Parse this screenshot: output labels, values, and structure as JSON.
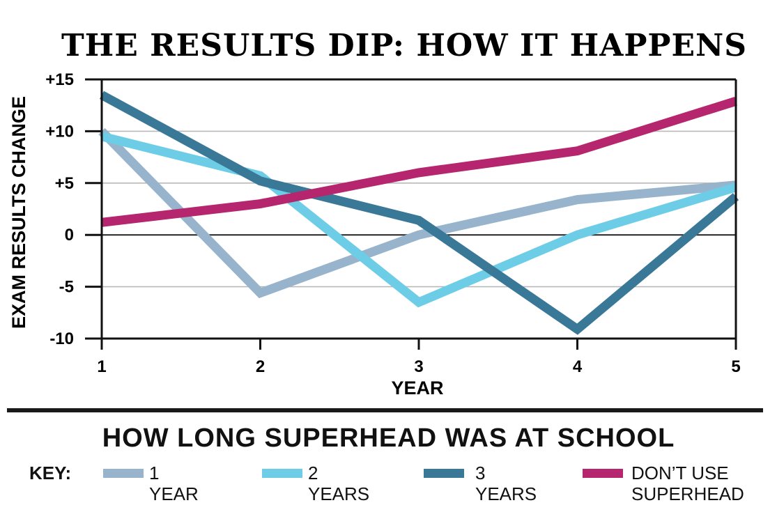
{
  "chart_data": {
    "type": "line",
    "title": "THE RESULTS DIP: HOW IT HAPPENS",
    "xlabel": "YEAR",
    "ylabel": "EXAM RESULTS CHANGE",
    "x": [
      1,
      2,
      3,
      4,
      5
    ],
    "x_tick_labels": [
      "1",
      "2",
      "3",
      "4",
      "5"
    ],
    "y_ticks": [
      15,
      10,
      5,
      0,
      -5,
      -10
    ],
    "y_tick_labels": [
      "+15",
      "+10",
      "+5",
      "0",
      "-5",
      "-10"
    ],
    "ylim": [
      -10,
      15
    ],
    "xlim": [
      1,
      5
    ],
    "grid": "horizontal",
    "series": [
      {
        "name": "1 YEAR",
        "color": "#97b4cc",
        "values": [
          10,
          -5.6,
          0,
          3.4,
          4.8
        ]
      },
      {
        "name": "2 YEARS",
        "color": "#6dcde6",
        "values": [
          9.5,
          5.7,
          -6.5,
          0,
          4.6
        ]
      },
      {
        "name": "3 YEARS",
        "color": "#3a7898",
        "values": [
          13.5,
          5.2,
          1.4,
          -9.1,
          3.7
        ]
      },
      {
        "name": "DON’T USE\nSUPERHEAD",
        "color": "#b5266e",
        "values": [
          1.2,
          3.0,
          6.0,
          8.1,
          12.9
        ]
      }
    ]
  },
  "legend": {
    "title": "HOW LONG SUPERHEAD WAS AT SCHOOL",
    "key_label": "KEY:"
  }
}
